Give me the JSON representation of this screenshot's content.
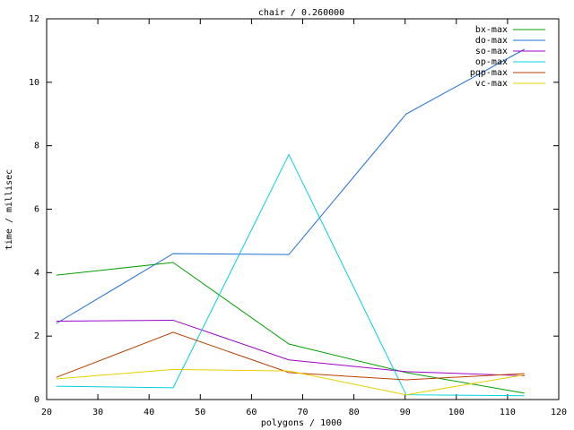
{
  "chart_data": {
    "type": "line",
    "title": "chair / 0.260000",
    "x_label": "polygons / 1000",
    "y_label": "time / millisec",
    "x": [
      21.9,
      44.7,
      67.3,
      90.2,
      113.3
    ],
    "series": [
      {
        "name": "bx-max",
        "color": "#00a000",
        "values": [
          3.92,
          4.32,
          1.75,
          0.85,
          0.2
        ]
      },
      {
        "name": "do-max",
        "color": "#1e6fd8",
        "values": [
          2.4,
          4.6,
          4.57,
          9.0,
          11.04
        ]
      },
      {
        "name": "so-max",
        "color": "#a000c8",
        "values": [
          2.47,
          2.5,
          1.25,
          0.88,
          0.75
        ]
      },
      {
        "name": "op-max",
        "color": "#00d0e0",
        "values": [
          0.42,
          0.37,
          7.72,
          0.15,
          0.12
        ]
      },
      {
        "name": "pqp-max",
        "color": "#b84000",
        "values": [
          0.7,
          2.12,
          0.85,
          0.62,
          0.82
        ]
      },
      {
        "name": "vc-max",
        "color": "#e8d000",
        "values": [
          0.65,
          0.95,
          0.9,
          0.15,
          0.78
        ]
      }
    ],
    "xlim": [
      20,
      120
    ],
    "xticks": [
      20,
      30,
      40,
      50,
      60,
      70,
      80,
      90,
      100,
      110,
      120
    ],
    "ylim": [
      0,
      12
    ],
    "yticks": [
      0,
      2,
      4,
      6,
      8,
      10,
      12
    ],
    "legend": "upper right"
  }
}
